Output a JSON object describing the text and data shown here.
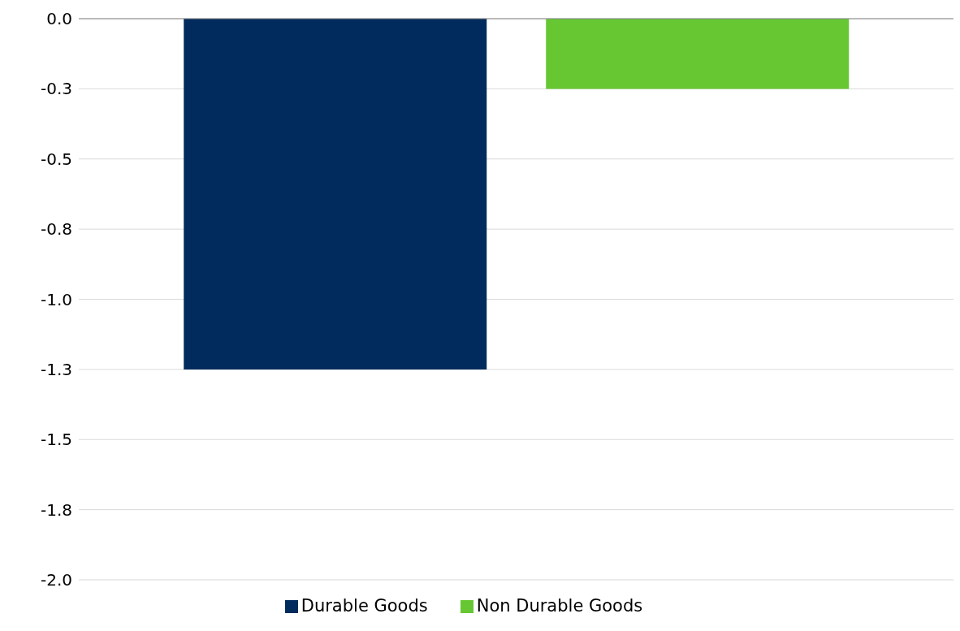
{
  "chart_data": {
    "type": "bar",
    "categories": [
      null
    ],
    "series": [
      {
        "name": "Durable Goods",
        "color": "#002b5c",
        "values": [
          -1.25
        ]
      },
      {
        "name": "Non Durable Goods",
        "color": "#66c733",
        "values": [
          -0.25
        ]
      }
    ],
    "ylim": [
      -2.0,
      0.0
    ],
    "yticks": [
      {
        "value": 0,
        "label": "0.0"
      },
      {
        "value": -0.25,
        "label": "-0.3"
      },
      {
        "value": -0.5,
        "label": "-0.5"
      },
      {
        "value": -0.75,
        "label": "-0.8"
      },
      {
        "value": -1.0,
        "label": "-1.0"
      },
      {
        "value": -1.25,
        "label": "-1.3"
      },
      {
        "value": -1.5,
        "label": "-1.5"
      },
      {
        "value": -1.75,
        "label": "-1.8"
      },
      {
        "value": -2.0,
        "label": "-2.0"
      }
    ],
    "grid": "y",
    "legend": "bottom",
    "tick_labels": "y"
  }
}
